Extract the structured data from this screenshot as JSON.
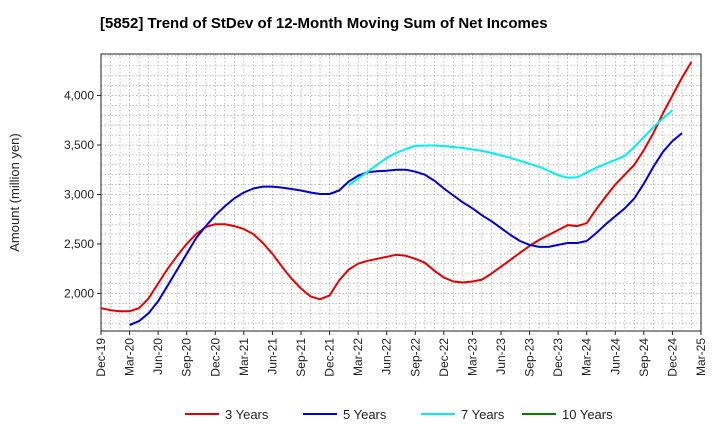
{
  "chart_data": {
    "type": "line",
    "title": "[5852]  Trend of StDev of 12-Month Moving Sum of Net Incomes",
    "xlabel": "",
    "ylabel": "Amount (million yen)",
    "x_tick_labels": [
      "Dec-19",
      "Mar-20",
      "Jun-20",
      "Sep-20",
      "Dec-20",
      "Mar-21",
      "Jun-21",
      "Sep-21",
      "Dec-21",
      "Mar-22",
      "Jun-22",
      "Sep-22",
      "Dec-22",
      "Mar-23",
      "Jun-23",
      "Sep-23",
      "Dec-23",
      "Mar-24",
      "Jun-24",
      "Sep-24",
      "Dec-24",
      "Mar-25"
    ],
    "y_ticks": [
      2000,
      2500,
      3000,
      3500,
      4000
    ],
    "y_tick_labels": [
      "2,000",
      "2,500",
      "3,000",
      "3,500",
      "4,000"
    ],
    "ylim": [
      1620,
      4420
    ],
    "xlim": [
      "Dec-19",
      "Mar-25"
    ],
    "grid": true,
    "legend_position": "bottom",
    "series": [
      {
        "name": "3 Years",
        "color": "#e00000",
        "start": "Dec-19",
        "values": [
          1850,
          1830,
          1820,
          1820,
          1850,
          1950,
          2100,
          2250,
          2380,
          2500,
          2600,
          2670,
          2700,
          2700,
          2680,
          2650,
          2600,
          2510,
          2400,
          2270,
          2150,
          2050,
          1970,
          1940,
          1980,
          2130,
          2240,
          2300,
          2330,
          2350,
          2370,
          2390,
          2380,
          2350,
          2310,
          2230,
          2160,
          2120,
          2110,
          2120,
          2140,
          2200,
          2270,
          2340,
          2410,
          2480,
          2540,
          2590,
          2640,
          2690,
          2680,
          2710,
          2850,
          2980,
          3100,
          3200,
          3300,
          3450,
          3620,
          3820,
          4000,
          4180,
          4340
        ]
      },
      {
        "name": "5 Years",
        "color": "#0000cc",
        "start": "Mar-20",
        "values": [
          1680,
          1720,
          1800,
          1920,
          2080,
          2240,
          2400,
          2560,
          2680,
          2790,
          2880,
          2960,
          3020,
          3060,
          3080,
          3080,
          3070,
          3055,
          3040,
          3020,
          3005,
          3005,
          3040,
          3130,
          3190,
          3225,
          3235,
          3240,
          3250,
          3250,
          3230,
          3200,
          3140,
          3060,
          2990,
          2920,
          2860,
          2790,
          2730,
          2660,
          2590,
          2530,
          2490,
          2470,
          2470,
          2490,
          2510,
          2510,
          2530,
          2610,
          2700,
          2780,
          2860,
          2960,
          3110,
          3280,
          3430,
          3540,
          3620
        ]
      },
      {
        "name": "7 Years",
        "color": "#00eeee",
        "start": "Feb-22",
        "values": [
          3090,
          3160,
          3230,
          3300,
          3370,
          3420,
          3460,
          3490,
          3495,
          3495,
          3490,
          3480,
          3470,
          3455,
          3440,
          3420,
          3395,
          3370,
          3340,
          3310,
          3280,
          3240,
          3195,
          3170,
          3175,
          3220,
          3270,
          3310,
          3350,
          3390,
          3480,
          3580,
          3680,
          3770,
          3850
        ]
      },
      {
        "name": "10 Years",
        "color": "#008000",
        "start": "Dec-24",
        "values": []
      }
    ]
  }
}
